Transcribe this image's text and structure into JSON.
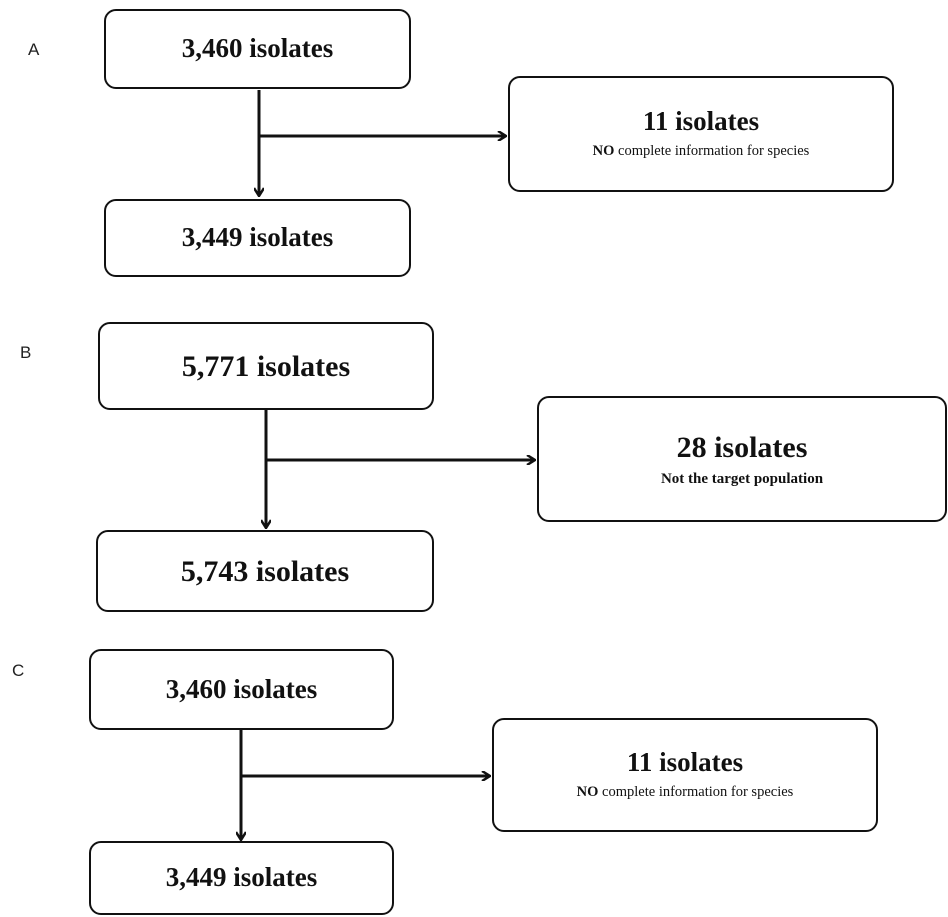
{
  "panels": [
    {
      "label": "A",
      "top_box": "3,460 isolates",
      "side_box": {
        "main": "11 isolates",
        "sub_emphasis": "NO",
        "sub_rest": " complete information for species"
      },
      "bottom_box": "3,449 isolates"
    },
    {
      "label": "B",
      "top_box": "5,771 isolates",
      "side_box": {
        "main": "28 isolates",
        "sub": "Not the target population"
      },
      "bottom_box": "5,743 isolates"
    },
    {
      "label": "C",
      "top_box": "3,460 isolates",
      "side_box": {
        "main": "11 isolates",
        "sub_emphasis": "NO",
        "sub_rest": " complete information for species"
      },
      "bottom_box": "3,449 isolates"
    }
  ]
}
